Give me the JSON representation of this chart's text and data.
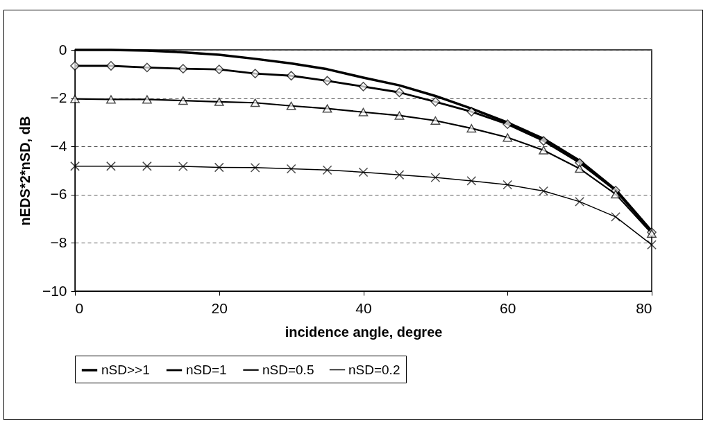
{
  "chart_data": {
    "type": "line",
    "xlabel": "incidence angle, degree",
    "ylabel": "nEDS*2*nSD, dB",
    "x": [
      0,
      5,
      10,
      15,
      20,
      25,
      30,
      35,
      40,
      45,
      50,
      55,
      60,
      65,
      70,
      75,
      80
    ],
    "series": [
      {
        "name": "nSD>>1",
        "color": "#000000",
        "marker": "none",
        "values": [
          0,
          0,
          -0.03,
          -0.1,
          -0.2,
          -0.37,
          -0.56,
          -0.8,
          -1.15,
          -1.47,
          -1.91,
          -2.43,
          -3.01,
          -3.68,
          -4.59,
          -5.79,
          -7.51
        ]
      },
      {
        "name": "nSD=1",
        "color": "#000000",
        "marker": "diamond",
        "values": [
          -0.66,
          -0.66,
          -0.73,
          -0.78,
          -0.81,
          -0.98,
          -1.07,
          -1.28,
          -1.52,
          -1.76,
          -2.15,
          -2.56,
          -3.08,
          -3.77,
          -4.68,
          -5.83,
          -7.56
        ]
      },
      {
        "name": "nSD=0.5",
        "color": "#000000",
        "marker": "triangle",
        "values": [
          -2.03,
          -2.05,
          -2.05,
          -2.1,
          -2.15,
          -2.19,
          -2.32,
          -2.43,
          -2.58,
          -2.72,
          -2.93,
          -3.25,
          -3.63,
          -4.16,
          -4.92,
          -5.98,
          -7.61
        ]
      },
      {
        "name": "nSD=0.2",
        "color": "#000000",
        "marker": "cross",
        "values": [
          -4.82,
          -4.82,
          -4.82,
          -4.83,
          -4.87,
          -4.88,
          -4.93,
          -4.98,
          -5.07,
          -5.18,
          -5.29,
          -5.43,
          -5.59,
          -5.85,
          -6.29,
          -6.92,
          -8.08
        ]
      }
    ],
    "xlim": [
      0,
      80
    ],
    "xticks": [
      0,
      20,
      40,
      60,
      80
    ],
    "ylim": [
      -10,
      0
    ],
    "yticks": [
      -10,
      -8,
      -6,
      -4,
      -2,
      0
    ],
    "grid": "y",
    "legend": "bottom"
  }
}
